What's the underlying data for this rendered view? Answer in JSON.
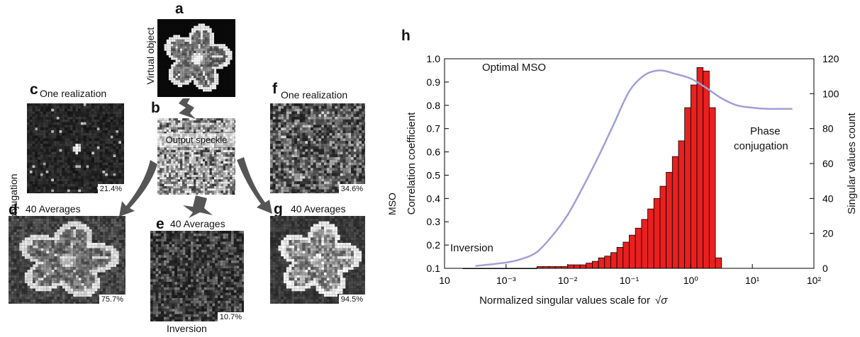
{
  "panels": {
    "a": {
      "letter": "a",
      "side_label": "Virtual object"
    },
    "b": {
      "letter": "b",
      "label": "Output speckle"
    },
    "c": {
      "letter": "c",
      "title": "One realization",
      "percent": "21.4%"
    },
    "d": {
      "letter": "d",
      "title": "40 Averages",
      "percent": "75.7%"
    },
    "e": {
      "letter": "e",
      "title": "40 Averages",
      "percent": "10.7%",
      "bottom_label": "Inversion"
    },
    "f": {
      "letter": "f",
      "title": "One realization",
      "percent": "34.6%"
    },
    "g": {
      "letter": "g",
      "title": "40 Averages",
      "percent": "94.5%"
    },
    "left_side_label": "Phase conjugation",
    "right_side_label": "MSO"
  },
  "colors": {
    "bars": "#e8201f",
    "curve": "#9f9fd8",
    "arrow": "#555555"
  },
  "chart_data": {
    "type": "bar",
    "panel_letter": "h",
    "xlabel": "Normalized singular values scale for",
    "xlabel_symbol": "√σ",
    "ylabel_left": "Correlation coefficient",
    "ylabel_right": "Singular values count",
    "xscale": "log",
    "xlim_exponent": [
      -4,
      2
    ],
    "x_tick_labels": [
      "10",
      "10⁻³",
      "10⁻²",
      "10⁻¹",
      "10⁰",
      "10¹",
      "10²"
    ],
    "ylim_left": [
      0.1,
      1.0
    ],
    "left_ticks": [
      "0.1",
      "0.2",
      "0.3",
      "0.4",
      "0.5",
      "0.6",
      "0.7",
      "0.8",
      "0.9",
      "1.0"
    ],
    "ylim_right": [
      0,
      120
    ],
    "right_ticks": [
      "0",
      "20",
      "40",
      "60",
      "80",
      "100",
      "120"
    ],
    "grid": false,
    "histogram": {
      "name": "Singular values count",
      "axis": "right",
      "bin_width_log10": 0.1,
      "log10_bin_starts": [
        -3.7,
        -3.6,
        -3.5,
        -3.4,
        -3.3,
        -3.2,
        -3.1,
        -3.0,
        -2.9,
        -2.8,
        -2.7,
        -2.6,
        -2.5,
        -2.4,
        -2.3,
        -2.2,
        -2.1,
        -2.0,
        -1.9,
        -1.8,
        -1.7,
        -1.6,
        -1.5,
        -1.4,
        -1.3,
        -1.2,
        -1.1,
        -1.0,
        -0.9,
        -0.8,
        -0.7,
        -0.6,
        -0.5,
        -0.4,
        -0.3,
        -0.2,
        -0.1,
        0.0,
        0.1,
        0.2,
        0.3,
        0.4
      ],
      "counts": [
        0,
        0,
        0,
        0,
        0,
        0,
        0,
        0,
        0,
        0,
        0,
        0,
        1,
        1,
        1,
        1,
        1,
        2,
        2,
        2,
        3,
        4,
        6,
        7,
        9,
        12,
        15,
        19,
        23,
        28,
        34,
        40,
        47,
        55,
        64,
        73,
        92,
        105,
        115,
        113,
        92,
        6
      ]
    },
    "correlation_curve": {
      "name": "Correlation coefficient",
      "axis": "left",
      "log10_x": [
        -3.5,
        -3.0,
        -2.75,
        -2.5,
        -2.25,
        -2.0,
        -1.75,
        -1.5,
        -1.25,
        -1.0,
        -0.75,
        -0.5,
        -0.25,
        0.0,
        0.25,
        0.5,
        0.75,
        1.0,
        1.25,
        1.5,
        1.65
      ],
      "y": [
        0.11,
        0.125,
        0.14,
        0.17,
        0.24,
        0.33,
        0.45,
        0.58,
        0.72,
        0.86,
        0.93,
        0.95,
        0.935,
        0.915,
        0.875,
        0.83,
        0.8,
        0.79,
        0.785,
        0.785,
        0.785
      ]
    },
    "annotations": [
      {
        "text": "Optimal MSO"
      },
      {
        "text": "Phase"
      },
      {
        "text": "conjugation"
      },
      {
        "text": "Inversion"
      }
    ]
  }
}
